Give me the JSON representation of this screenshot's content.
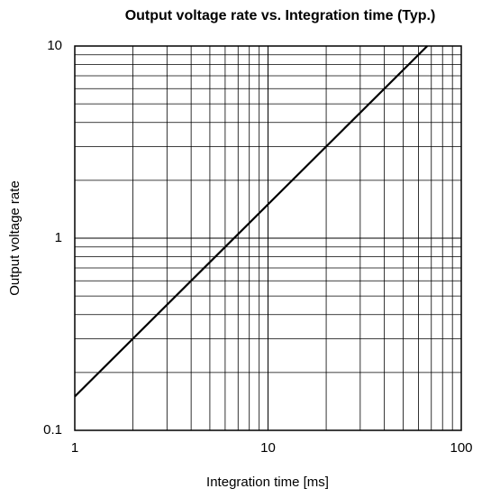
{
  "chart_data": {
    "type": "line",
    "title": "Output voltage rate vs. Integration time (Typ.)",
    "x_label": "Integration time [ms]",
    "y_label": "Output voltage rate",
    "x": [
      1,
      66.7
    ],
    "series": [
      {
        "name": null,
        "color": "#000000",
        "values": [
          0.15,
          10
        ]
      }
    ],
    "xlim": [
      1,
      100
    ],
    "xticks": [
      1,
      10,
      100
    ],
    "ylim": [
      0.1,
      10
    ],
    "yticks": [
      0.1,
      1,
      10
    ],
    "xscale": "log",
    "yscale": "log",
    "grid": true,
    "minor_grid": true
  }
}
